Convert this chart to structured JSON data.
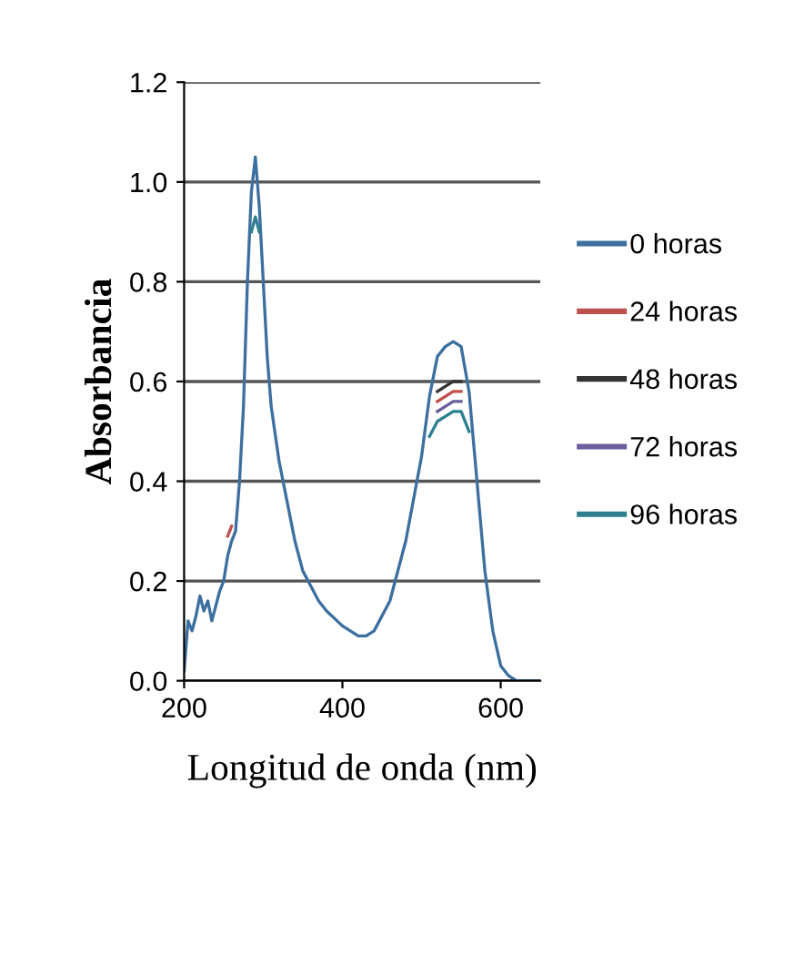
{
  "chart_data": {
    "type": "line",
    "xlabel": "Longitud de onda (nm)",
    "ylabel": "Absorbancia",
    "x": [
      200,
      205,
      210,
      215,
      220,
      225,
      230,
      235,
      240,
      245,
      250,
      255,
      260,
      265,
      270,
      275,
      280,
      285,
      290,
      295,
      300,
      305,
      310,
      320,
      330,
      340,
      350,
      360,
      370,
      380,
      400,
      420,
      430,
      440,
      460,
      480,
      500,
      510,
      520,
      530,
      540,
      550,
      560,
      570,
      580,
      590,
      600,
      610,
      620,
      650
    ],
    "series": [
      {
        "name": "0 horas",
        "color": "#3d6fa0",
        "values": [
          0.02,
          0.12,
          0.1,
          0.13,
          0.17,
          0.14,
          0.16,
          0.12,
          0.15,
          0.18,
          0.2,
          0.25,
          0.28,
          0.3,
          0.4,
          0.55,
          0.8,
          0.98,
          1.05,
          0.95,
          0.8,
          0.65,
          0.55,
          0.44,
          0.36,
          0.28,
          0.22,
          0.19,
          0.16,
          0.14,
          0.11,
          0.09,
          0.09,
          0.1,
          0.16,
          0.28,
          0.45,
          0.57,
          0.65,
          0.67,
          0.68,
          0.67,
          0.58,
          0.4,
          0.22,
          0.1,
          0.03,
          0.01,
          0.0,
          0.0
        ]
      },
      {
        "name": "24 horas",
        "color": "#c0504d",
        "values": [
          null,
          null,
          null,
          null,
          null,
          null,
          null,
          null,
          null,
          null,
          null,
          0.29,
          0.31,
          null,
          null,
          null,
          null,
          null,
          null,
          null,
          null,
          null,
          null,
          null,
          null,
          null,
          null,
          null,
          null,
          null,
          null,
          null,
          null,
          null,
          null,
          null,
          null,
          null,
          0.56,
          0.57,
          0.58,
          0.58,
          null,
          null,
          null,
          null,
          null,
          null,
          null,
          null
        ]
      },
      {
        "name": "48 horas",
        "color": "#333333",
        "values": [
          null,
          null,
          null,
          null,
          null,
          null,
          null,
          null,
          null,
          null,
          null,
          null,
          null,
          null,
          null,
          null,
          null,
          null,
          null,
          null,
          null,
          null,
          null,
          null,
          null,
          null,
          null,
          null,
          null,
          null,
          null,
          null,
          null,
          null,
          null,
          null,
          null,
          null,
          0.58,
          0.59,
          0.6,
          0.6,
          null,
          null,
          null,
          null,
          null,
          null,
          null,
          null
        ]
      },
      {
        "name": "72 horas",
        "color": "#6c5d9c",
        "values": [
          null,
          null,
          null,
          null,
          null,
          null,
          null,
          null,
          null,
          null,
          null,
          null,
          null,
          null,
          null,
          null,
          null,
          null,
          null,
          null,
          null,
          null,
          null,
          null,
          null,
          null,
          null,
          null,
          null,
          null,
          null,
          null,
          null,
          null,
          null,
          null,
          null,
          null,
          0.54,
          0.55,
          0.56,
          0.56,
          null,
          null,
          null,
          null,
          null,
          null,
          null,
          null
        ]
      },
      {
        "name": "96 horas",
        "color": "#2e7f8f",
        "values": [
          null,
          null,
          null,
          null,
          null,
          null,
          null,
          null,
          null,
          null,
          null,
          null,
          null,
          null,
          null,
          null,
          null,
          0.9,
          0.93,
          0.9,
          null,
          null,
          null,
          null,
          null,
          null,
          null,
          null,
          null,
          null,
          null,
          null,
          null,
          null,
          null,
          null,
          null,
          0.49,
          0.52,
          0.53,
          0.54,
          0.54,
          0.5,
          null,
          null,
          null,
          null,
          null,
          null,
          null
        ]
      }
    ],
    "xlim": [
      200,
      650
    ],
    "xticks": [
      200,
      400,
      600
    ],
    "ylim": [
      0,
      1.2
    ],
    "yticks": [
      {
        "value": 0,
        "label": "0.0"
      },
      {
        "value": 0.2,
        "label": "0.2"
      },
      {
        "value": 0.4,
        "label": "0.4"
      },
      {
        "value": 0.6,
        "label": "0.6"
      },
      {
        "value": 0.8,
        "label": "0.8"
      },
      {
        "value": 1.0,
        "label": "1.0"
      },
      {
        "value": 1.2,
        "label": "1.2"
      }
    ],
    "grid": "y",
    "legend": "right",
    "marker": "none",
    "line_style": "solid"
  }
}
